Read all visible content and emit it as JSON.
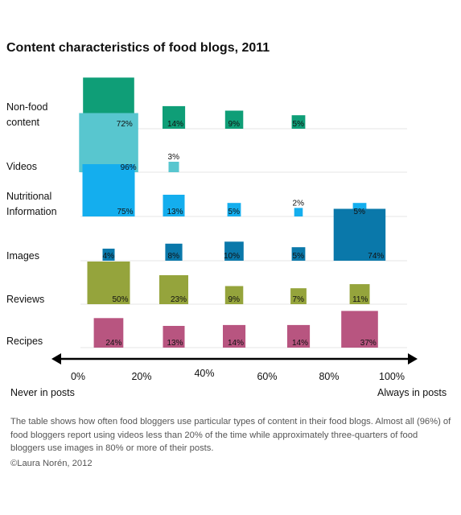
{
  "chart_data": {
    "type": "bubble-matrix",
    "title": "Content characteristics of food blogs, 2011",
    "x_axis": {
      "ticks": [
        "0%",
        "20%",
        "40%",
        "60%",
        "80%",
        "100%"
      ],
      "left_label": "Never in posts",
      "right_label": "Always in posts"
    },
    "bins": [
      "0-20%",
      "20-40%",
      "40-60%",
      "60-80%",
      "80-100%"
    ],
    "series": [
      {
        "name": "Non-food content",
        "label_lines": [
          "Non-food",
          "content"
        ],
        "color": "#0f9e77",
        "values": [
          72,
          14,
          9,
          5,
          null
        ]
      },
      {
        "name": "Videos",
        "label_lines": [
          "Videos"
        ],
        "color": "#58c6cf",
        "values": [
          96,
          3,
          null,
          null,
          null
        ]
      },
      {
        "name": "Nutritional Information",
        "label_lines": [
          "Nutritional",
          "Information"
        ],
        "color": "#14aeee",
        "values": [
          75,
          13,
          5,
          2,
          5
        ]
      },
      {
        "name": "Images",
        "label_lines": [
          "Images"
        ],
        "color": "#0a78aa",
        "values": [
          4,
          8,
          10,
          5,
          74
        ]
      },
      {
        "name": "Reviews",
        "label_lines": [
          "Reviews"
        ],
        "color": "#95a43c",
        "values": [
          50,
          23,
          9,
          7,
          11
        ]
      },
      {
        "name": "Recipes",
        "label_lines": [
          "Recipes"
        ],
        "color": "#b85580",
        "values": [
          24,
          13,
          14,
          14,
          37
        ]
      }
    ]
  },
  "caption": "The table shows how often food bloggers use particular types of content in their food blogs. Almost all (96%) of food bloggers report using videos less than 20% of the time while approximately three-quarters of food bloggers use images in 80% or more of their posts.",
  "credit": "©Laura Norén, 2012"
}
